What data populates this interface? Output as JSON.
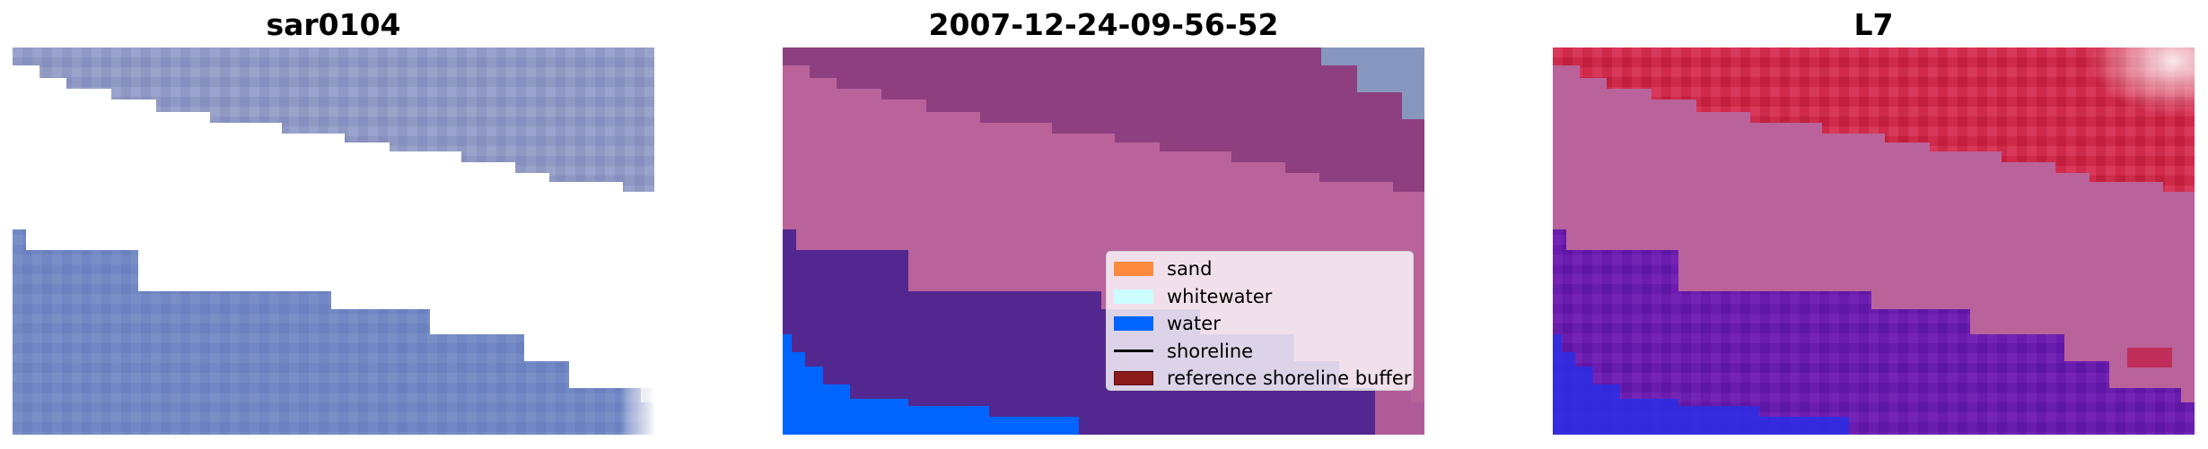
{
  "panels": [
    {
      "title": "sar0104"
    },
    {
      "title": "2007-12-24-09-56-52"
    },
    {
      "title": "L7"
    }
  ],
  "legend": {
    "items": [
      {
        "label": "sand",
        "color": "#fc8a3e",
        "kind": "patch"
      },
      {
        "label": "whitewater",
        "color": "#ccfeff",
        "kind": "patch"
      },
      {
        "label": "water",
        "color": "#0064ff",
        "kind": "patch"
      },
      {
        "label": "shoreline",
        "color": "#000000",
        "kind": "line"
      },
      {
        "label": "reference shoreline buffer",
        "color": "#8b1a1a",
        "kind": "patch"
      }
    ]
  },
  "colors": {
    "sand_overlay": "#b9639a",
    "water_overlay": "#52278f",
    "ocean_deep": "#0064ff",
    "rgb_land": "#8e9ac4",
    "rgb_water": "#6c86c4",
    "l7_land": "#d02848",
    "l7_water": "#6a1cae"
  }
}
